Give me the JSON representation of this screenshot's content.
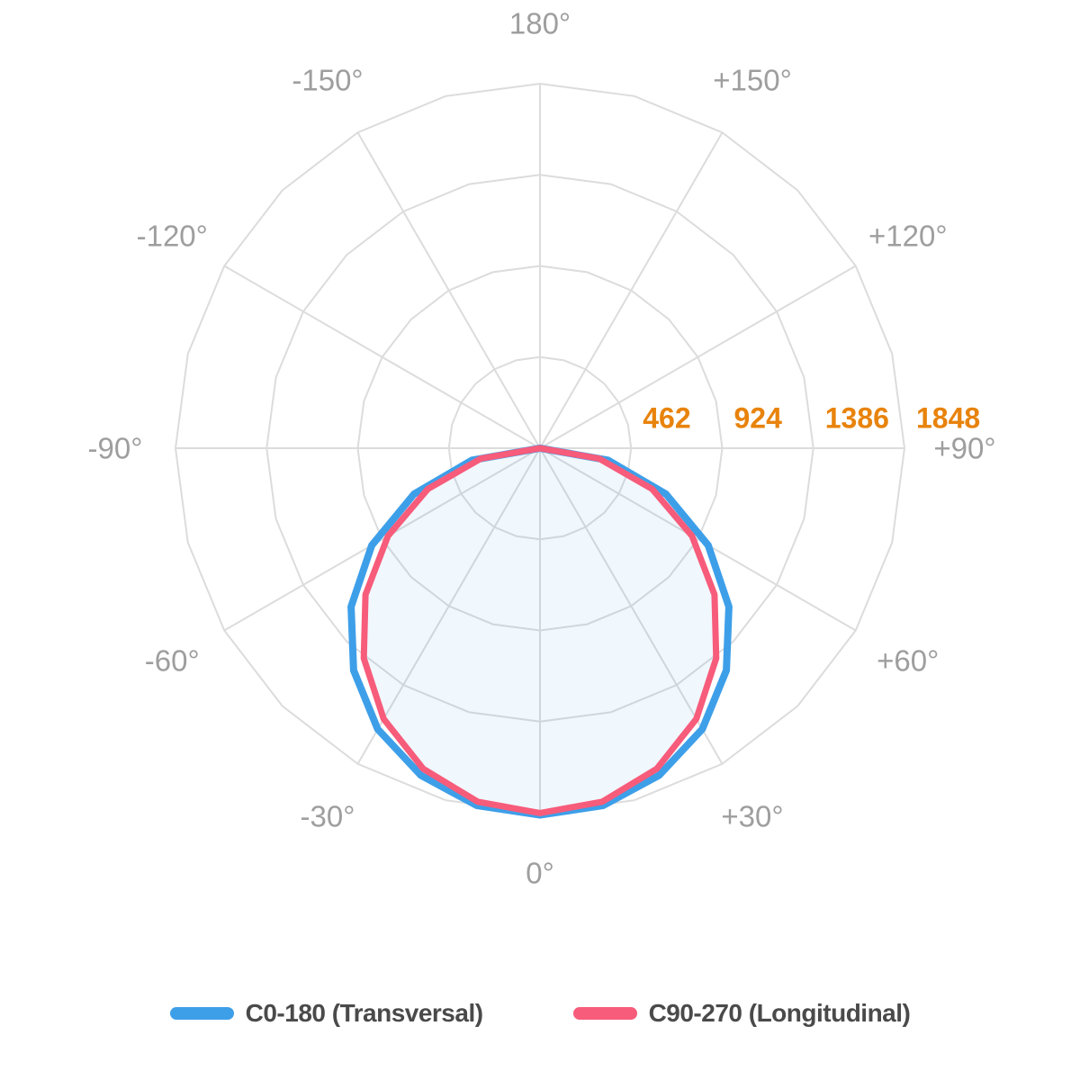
{
  "chart_data": {
    "type": "line",
    "subtype": "polar-photometric",
    "title": "",
    "legend_position": "bottom",
    "grid_color": "#DCDCDC",
    "fill_background": "#FFFFFF",
    "radial_axis": {
      "ticks": [
        462,
        924,
        1386,
        1848
      ],
      "max": 1848,
      "label_color": "#E8830C"
    },
    "angle_axis": {
      "zero_direction": "down",
      "spoke_step_deg": 30,
      "ring_segment_step_deg": 15,
      "label_color": "#9E9E9E",
      "ticks": [
        {
          "angle": 0,
          "label": "0°"
        },
        {
          "angle": 30,
          "label": "+30°"
        },
        {
          "angle": 60,
          "label": "+60°"
        },
        {
          "angle": 90,
          "label": "+90°"
        },
        {
          "angle": 120,
          "label": "+120°"
        },
        {
          "angle": 150,
          "label": "+150°"
        },
        {
          "angle": 180,
          "label": "180°"
        },
        {
          "angle": -150,
          "label": "-150°"
        },
        {
          "angle": -120,
          "label": "-120°"
        },
        {
          "angle": -90,
          "label": "-90°"
        },
        {
          "angle": -60,
          "label": "-60°"
        },
        {
          "angle": -30,
          "label": "-30°"
        }
      ]
    },
    "gamma_deg": [
      -90,
      -80,
      -70,
      -60,
      -50,
      -40,
      -30,
      -20,
      -10,
      0,
      10,
      20,
      30,
      40,
      50,
      60,
      70,
      80,
      90
    ],
    "series": [
      {
        "name": "C0-180 (Transversal)",
        "color": "#3E9FE9",
        "line_width": 8,
        "values": [
          0,
          350,
          680,
          985,
          1250,
          1470,
          1645,
          1765,
          1840,
          1860,
          1840,
          1765,
          1645,
          1470,
          1250,
          985,
          680,
          350,
          0
        ]
      },
      {
        "name": "C90-270 (Longitudinal)",
        "color": "#F75C7B",
        "line_width": 7,
        "fill": "rgba(62,159,233,0.08)",
        "values": [
          0,
          305,
          605,
          890,
          1155,
          1390,
          1585,
          1730,
          1820,
          1850,
          1820,
          1730,
          1585,
          1390,
          1155,
          890,
          605,
          305,
          0
        ]
      }
    ]
  },
  "legend": {
    "items": [
      {
        "label": "C0-180 (Transversal)",
        "color": "#3E9FE9"
      },
      {
        "label": "C90-270 (Longitudinal)",
        "color": "#F75C7B"
      }
    ]
  }
}
